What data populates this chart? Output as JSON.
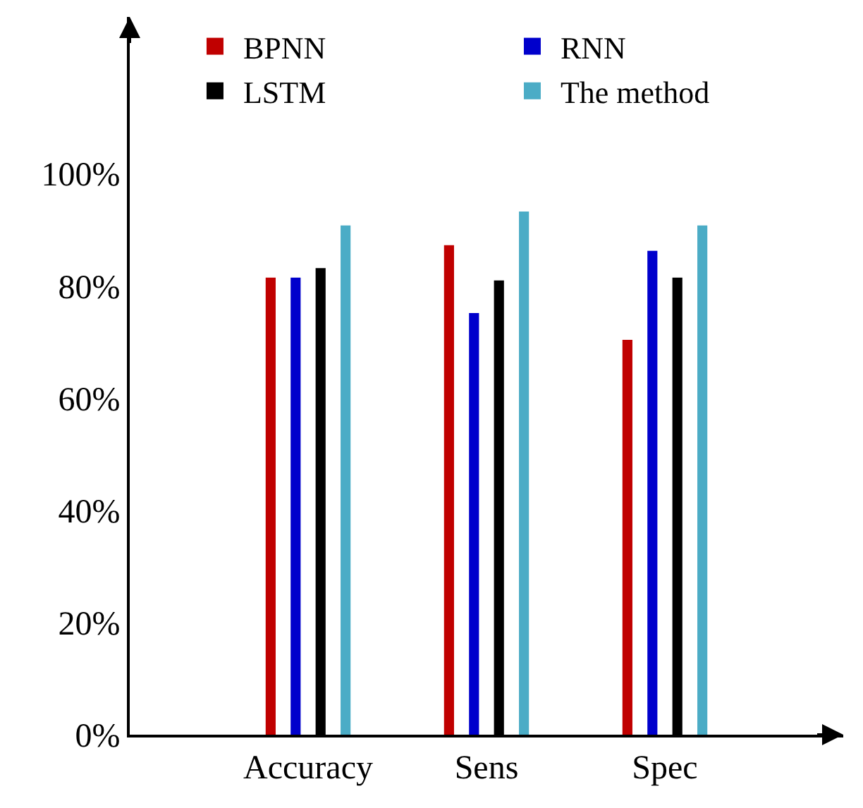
{
  "chart_data": {
    "type": "bar",
    "categories": [
      "Accuracy",
      "Sens",
      "Spec"
    ],
    "series": [
      {
        "name": "BPNN",
        "color": "#c00000",
        "values": [
          81.5,
          87.3,
          70.4
        ]
      },
      {
        "name": "RNN",
        "color": "#0000cc",
        "values": [
          81.5,
          75.2,
          86.3
        ]
      },
      {
        "name": "LSTM",
        "color": "#000000",
        "values": [
          83.2,
          81,
          81.5
        ]
      },
      {
        "name": "The method",
        "color": "#4bacc6",
        "values": [
          90.8,
          93.3,
          90.8
        ]
      }
    ],
    "ylim": [
      0,
      128
    ],
    "yticks": [
      {
        "value": 0,
        "label": "0%"
      },
      {
        "value": 20,
        "label": "20%"
      },
      {
        "value": 40,
        "label": "40%"
      },
      {
        "value": 60,
        "label": "60%"
      },
      {
        "value": 80,
        "label": "80%"
      },
      {
        "value": 100,
        "label": "100%"
      }
    ],
    "legend": "top"
  }
}
